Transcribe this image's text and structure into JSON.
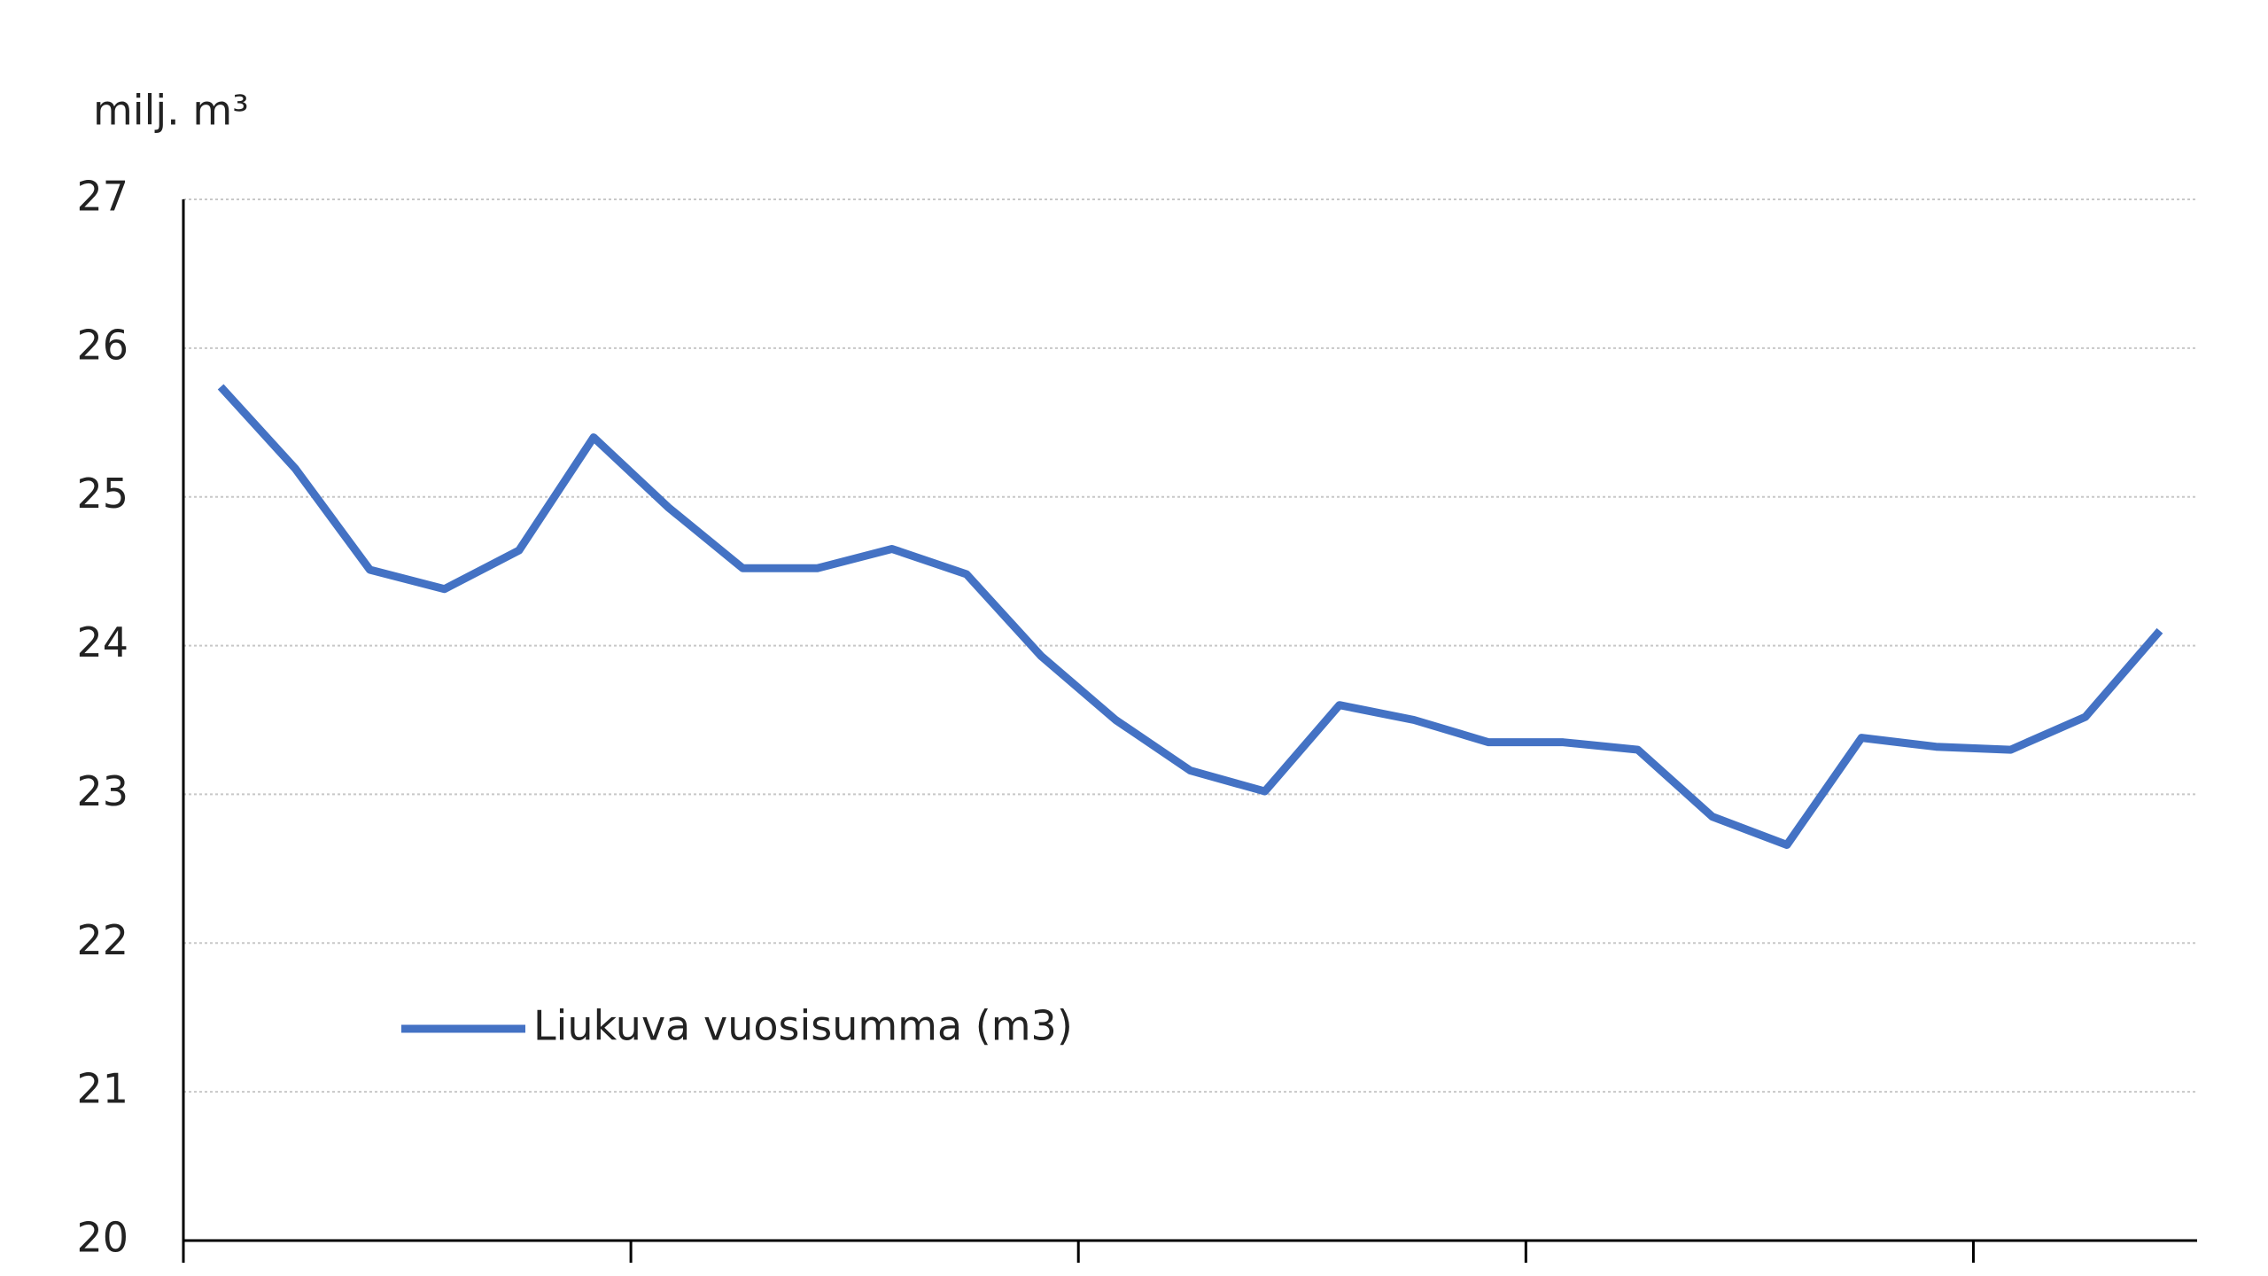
{
  "chart_data": {
    "type": "line",
    "y_label": "milj. m³",
    "categories": [
      null,
      null,
      null,
      null,
      null,
      null,
      null,
      null,
      null,
      null,
      null,
      null,
      null,
      null,
      null,
      null,
      null,
      null,
      null,
      null,
      null,
      null,
      null,
      null,
      null,
      null,
      null
    ],
    "series": [
      {
        "name": "Liukuva vuosisumma (m3)",
        "color": "#4472c4",
        "values": [
          25.74,
          25.19,
          24.51,
          24.38,
          24.64,
          25.4,
          24.93,
          24.52,
          24.52,
          24.65,
          24.48,
          23.93,
          23.5,
          23.16,
          23.02,
          23.6,
          23.5,
          23.35,
          23.35,
          23.3,
          22.85,
          22.66,
          23.38,
          23.32,
          23.3,
          23.52,
          24.1
        ]
      }
    ],
    "ylim": [
      20,
      27
    ],
    "yticks": [
      20,
      21,
      22,
      23,
      24,
      25,
      26,
      27
    ],
    "grid": true,
    "x_tick_every": 6
  }
}
